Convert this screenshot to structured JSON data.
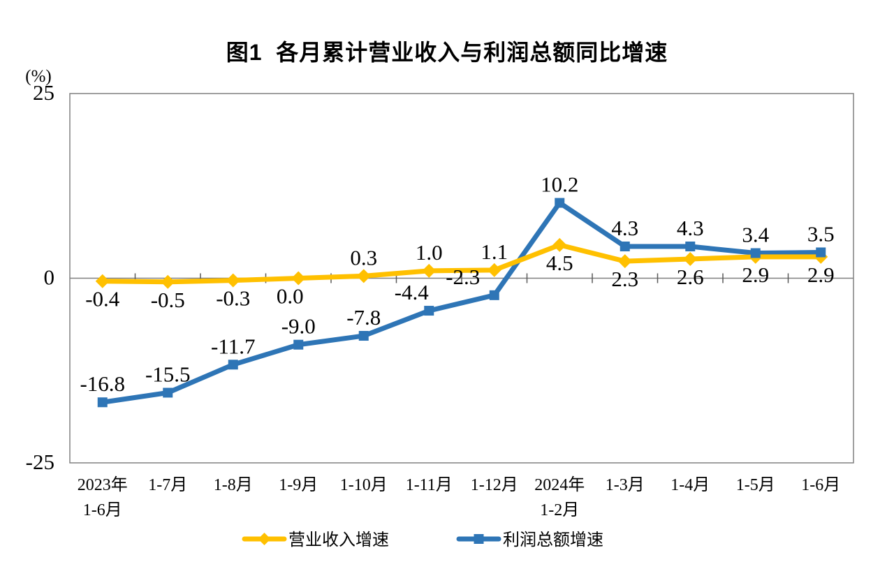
{
  "chart_data": {
    "type": "line",
    "title": "图1  各月累计营业收入与利润总额同比增速",
    "categories": [
      "2023年\n1-6月",
      "1-7月",
      "1-8月",
      "1-9月",
      "1-10月",
      "1-11月",
      "1-12月",
      "2024年\n1-2月",
      "1-3月",
      "1-4月",
      "1-5月",
      "1-6月"
    ],
    "series": [
      {
        "name": "营业收入增速",
        "color": "#FFC000",
        "marker": "diamond",
        "values": [
          -0.4,
          -0.5,
          -0.3,
          0.0,
          0.3,
          1.0,
          1.1,
          4.5,
          2.3,
          2.6,
          2.9,
          2.9
        ],
        "label_side": [
          "below",
          "below",
          "below",
          "below",
          "above",
          "above",
          "above",
          "below",
          "below",
          "below",
          "below",
          "below"
        ]
      },
      {
        "name": "利润总额增速",
        "color": "#2E75B6",
        "marker": "square",
        "values": [
          -16.8,
          -15.5,
          -11.7,
          -9.0,
          -7.8,
          -4.4,
          -2.3,
          10.2,
          4.3,
          4.3,
          3.4,
          3.5
        ],
        "label_side": [
          "above",
          "above",
          "above",
          "above",
          "above",
          "above",
          "above",
          "above",
          "above",
          "above",
          "above",
          "above"
        ]
      }
    ],
    "y_axis_unit": "(%)",
    "yticks": [
      25,
      0,
      -25
    ],
    "ylim": [
      -25,
      25
    ],
    "grid": false,
    "legend_position": "bottom",
    "axis_color": "#808080",
    "tick_color": "#595959",
    "label_color": "#000000"
  }
}
